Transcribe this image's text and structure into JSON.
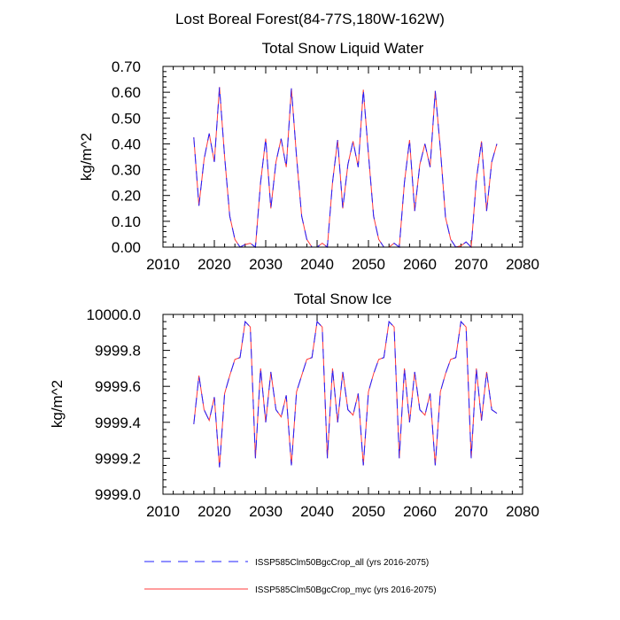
{
  "page_title": "Lost Boreal Forest(84-77S,180W-162W)",
  "legend": [
    {
      "label": "ISSP585Clm50BgcCrop_all (yrs 2016-2075)",
      "color": "#1f1fff",
      "dash": "dashed"
    },
    {
      "label": "ISSP585Clm50BgcCrop_myc (yrs 2016-2075)",
      "color": "#ff3b3b",
      "dash": "solid"
    }
  ],
  "chart_data": [
    {
      "type": "line",
      "title": "Total Snow Liquid Water",
      "xlabel": "",
      "ylabel": "kg/m^2",
      "xlim": [
        2010,
        2080
      ],
      "ylim": [
        0,
        0.7
      ],
      "xticks": [
        2010,
        2020,
        2030,
        2040,
        2050,
        2060,
        2070,
        2080
      ],
      "xtick_labels": [
        "2010",
        "2020",
        "2030",
        "2040",
        "2050",
        "2060",
        "2070",
        "2080"
      ],
      "yticks": [
        0,
        0.1,
        0.2,
        0.3,
        0.4,
        0.5,
        0.6,
        0.7
      ],
      "ytick_labels": [
        "0.00",
        "0.10",
        "0.20",
        "0.30",
        "0.40",
        "0.50",
        "0.60",
        "0.70"
      ],
      "x": [
        2016,
        2017,
        2018,
        2019,
        2020,
        2021,
        2022,
        2023,
        2024,
        2025,
        2026,
        2027,
        2028,
        2029,
        2030,
        2031,
        2032,
        2033,
        2034,
        2035,
        2036,
        2037,
        2038,
        2039,
        2040,
        2041,
        2042,
        2043,
        2044,
        2045,
        2046,
        2047,
        2048,
        2049,
        2050,
        2051,
        2052,
        2053,
        2054,
        2055,
        2056,
        2057,
        2058,
        2059,
        2060,
        2061,
        2062,
        2063,
        2064,
        2065,
        2066,
        2067,
        2068,
        2069,
        2070,
        2071,
        2072,
        2073,
        2074,
        2075
      ],
      "series": [
        {
          "name": "ISSP585Clm50BgcCrop_all (yrs 2016-2075)",
          "values": [
            0.425,
            0.16,
            0.34,
            0.44,
            0.33,
            0.62,
            0.35,
            0.12,
            0.03,
            0.0,
            0.01,
            0.015,
            0.0,
            0.25,
            0.42,
            0.15,
            0.33,
            0.42,
            0.31,
            0.615,
            0.35,
            0.12,
            0.03,
            0.0,
            0.0,
            0.015,
            0.0,
            0.25,
            0.415,
            0.15,
            0.32,
            0.41,
            0.31,
            0.61,
            0.36,
            0.12,
            0.03,
            0.0,
            0.0,
            0.015,
            0.0,
            0.25,
            0.415,
            0.14,
            0.32,
            0.4,
            0.31,
            0.605,
            0.38,
            0.115,
            0.03,
            0.0,
            0.005,
            0.02,
            0.0,
            0.26,
            0.41,
            0.14,
            0.33,
            0.4
          ]
        },
        {
          "name": "ISSP585Clm50BgcCrop_myc (yrs 2016-2075)",
          "values": [
            0.425,
            0.16,
            0.34,
            0.44,
            0.33,
            0.62,
            0.35,
            0.12,
            0.03,
            0.0,
            0.01,
            0.015,
            0.0,
            0.25,
            0.42,
            0.15,
            0.33,
            0.42,
            0.31,
            0.615,
            0.35,
            0.12,
            0.03,
            0.0,
            0.0,
            0.015,
            0.0,
            0.25,
            0.415,
            0.15,
            0.32,
            0.41,
            0.31,
            0.61,
            0.36,
            0.12,
            0.03,
            0.0,
            0.0,
            0.015,
            0.0,
            0.25,
            0.415,
            0.14,
            0.32,
            0.4,
            0.31,
            0.605,
            0.38,
            0.115,
            0.03,
            0.0,
            0.005,
            0.02,
            0.0,
            0.26,
            0.41,
            0.14,
            0.33,
            0.4
          ]
        }
      ]
    },
    {
      "type": "line",
      "title": "Total Snow Ice",
      "xlabel": "",
      "ylabel": "kg/m^2",
      "xlim": [
        2010,
        2080
      ],
      "ylim": [
        9999.0,
        10000.0
      ],
      "xticks": [
        2010,
        2020,
        2030,
        2040,
        2050,
        2060,
        2070,
        2080
      ],
      "xtick_labels": [
        "2010",
        "2020",
        "2030",
        "2040",
        "2050",
        "2060",
        "2070",
        "2080"
      ],
      "yticks": [
        9999.0,
        9999.2,
        9999.4,
        9999.6,
        9999.8,
        10000.0
      ],
      "ytick_labels": [
        "9999.0",
        "9999.2",
        "9999.4",
        "9999.6",
        "9999.8",
        "10000.0"
      ],
      "x": [
        2016,
        2017,
        2018,
        2019,
        2020,
        2021,
        2022,
        2023,
        2024,
        2025,
        2026,
        2027,
        2028,
        2029,
        2030,
        2031,
        2032,
        2033,
        2034,
        2035,
        2036,
        2037,
        2038,
        2039,
        2040,
        2041,
        2042,
        2043,
        2044,
        2045,
        2046,
        2047,
        2048,
        2049,
        2050,
        2051,
        2052,
        2053,
        2054,
        2055,
        2056,
        2057,
        2058,
        2059,
        2060,
        2061,
        2062,
        2063,
        2064,
        2065,
        2066,
        2067,
        2068,
        2069,
        2070,
        2071,
        2072,
        2073,
        2074,
        2075
      ],
      "series": [
        {
          "name": "ISSP585Clm50BgcCrop_all (yrs 2016-2075)",
          "values": [
            9999.39,
            9999.66,
            9999.47,
            9999.41,
            9999.54,
            9999.15,
            9999.56,
            9999.66,
            9999.75,
            9999.76,
            9999.96,
            9999.93,
            9999.2,
            9999.7,
            9999.4,
            9999.68,
            9999.47,
            9999.43,
            9999.55,
            9999.16,
            9999.57,
            9999.66,
            9999.75,
            9999.76,
            9999.96,
            9999.93,
            9999.2,
            9999.7,
            9999.4,
            9999.68,
            9999.47,
            9999.44,
            9999.56,
            9999.16,
            9999.57,
            9999.67,
            9999.75,
            9999.76,
            9999.96,
            9999.93,
            9999.2,
            9999.7,
            9999.4,
            9999.68,
            9999.47,
            9999.44,
            9999.56,
            9999.16,
            9999.57,
            9999.67,
            9999.75,
            9999.76,
            9999.96,
            9999.93,
            9999.2,
            9999.7,
            9999.41,
            9999.68,
            9999.47,
            9999.45
          ]
        },
        {
          "name": "ISSP585Clm50BgcCrop_myc (yrs 2016-2075)",
          "values": [
            9999.39,
            9999.66,
            9999.47,
            9999.41,
            9999.54,
            9999.15,
            9999.56,
            9999.66,
            9999.75,
            9999.76,
            9999.96,
            9999.93,
            9999.2,
            9999.7,
            9999.4,
            9999.68,
            9999.47,
            9999.43,
            9999.55,
            9999.16,
            9999.57,
            9999.66,
            9999.75,
            9999.76,
            9999.96,
            9999.93,
            9999.2,
            9999.7,
            9999.4,
            9999.68,
            9999.47,
            9999.44,
            9999.56,
            9999.16,
            9999.57,
            9999.67,
            9999.75,
            9999.76,
            9999.96,
            9999.93,
            9999.2,
            9999.7,
            9999.4,
            9999.68,
            9999.47,
            9999.44,
            9999.56,
            9999.16,
            9999.57,
            9999.67,
            9999.75,
            9999.76,
            9999.96,
            9999.93,
            9999.2,
            9999.7,
            9999.41,
            9999.68,
            9999.47,
            9999.45
          ]
        }
      ]
    }
  ]
}
